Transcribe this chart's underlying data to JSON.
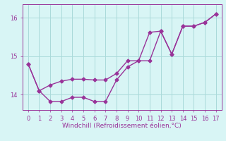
{
  "xlabel": "Windchill (Refroidissement éolien,°C)",
  "x": [
    0,
    1,
    2,
    3,
    4,
    5,
    6,
    7,
    8,
    9,
    10,
    11,
    12,
    13,
    14,
    15,
    16,
    17
  ],
  "line1": [
    14.8,
    14.1,
    14.25,
    14.35,
    14.4,
    14.4,
    14.38,
    14.38,
    14.55,
    14.88,
    14.88,
    14.88,
    15.65,
    15.05,
    15.78,
    15.78,
    15.88,
    16.1
  ],
  "line2": [
    14.8,
    14.1,
    13.82,
    13.82,
    13.93,
    13.93,
    13.82,
    13.82,
    14.38,
    14.72,
    14.88,
    15.62,
    15.65,
    15.05,
    15.78,
    15.78,
    15.88,
    16.1
  ],
  "ylim": [
    13.6,
    16.35
  ],
  "yticks": [
    14,
    15,
    16
  ],
  "xticks": [
    0,
    1,
    2,
    3,
    4,
    5,
    6,
    7,
    8,
    9,
    10,
    11,
    12,
    13,
    14,
    15,
    16,
    17
  ],
  "line_color": "#993399",
  "bg_color": "#d8f5f5",
  "grid_color": "#aadada",
  "markersize": 2.5,
  "linewidth": 1.0
}
